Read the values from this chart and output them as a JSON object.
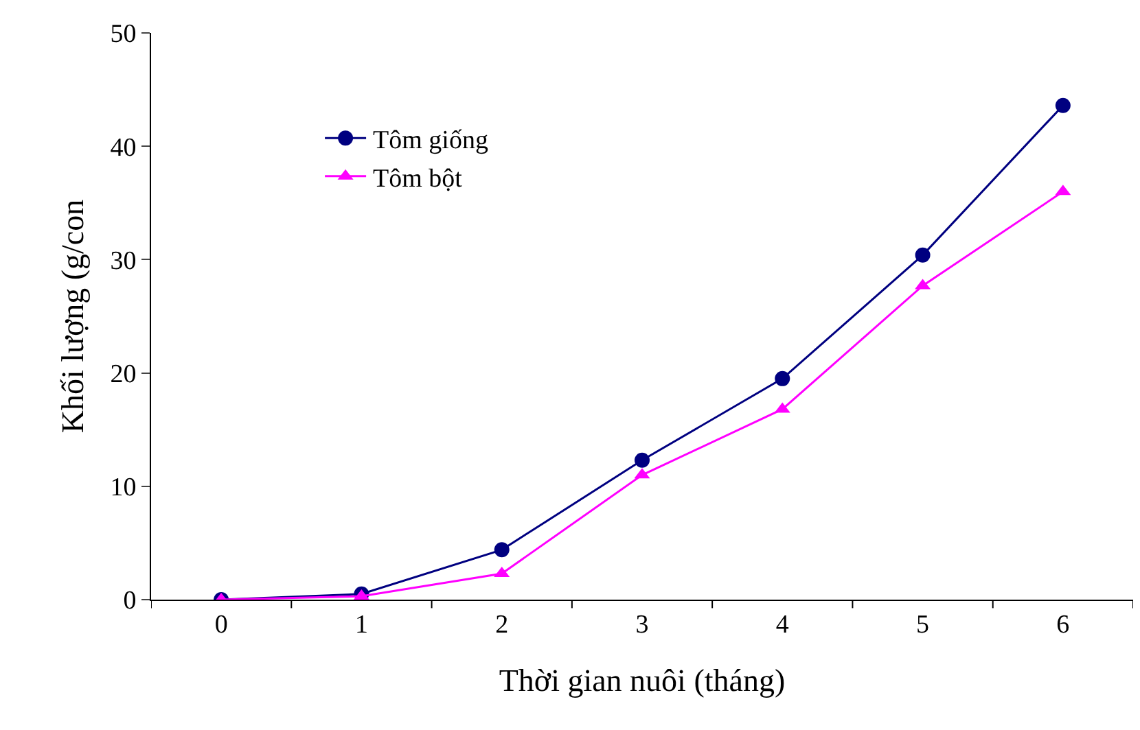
{
  "chart_data": {
    "type": "line",
    "xlabel": "Thời gian nuôi (tháng)",
    "ylabel": "Khối lượng (g/con",
    "categories": [
      "0",
      "1",
      "2",
      "3",
      "4",
      "5",
      "6"
    ],
    "series": [
      {
        "name": "Tôm giống",
        "color": "#000080",
        "marker": "circle",
        "values": [
          0,
          0.5,
          4.4,
          12.3,
          19.5,
          30.4,
          43.6
        ]
      },
      {
        "name": "Tôm bột",
        "color": "#ff00ff",
        "marker": "triangle",
        "values": [
          0,
          0.3,
          2.3,
          11.0,
          16.8,
          27.7,
          36.0
        ]
      }
    ],
    "ylim": [
      0,
      50
    ],
    "yticks": [
      0,
      10,
      20,
      30,
      40,
      50
    ],
    "legend": "top left"
  }
}
